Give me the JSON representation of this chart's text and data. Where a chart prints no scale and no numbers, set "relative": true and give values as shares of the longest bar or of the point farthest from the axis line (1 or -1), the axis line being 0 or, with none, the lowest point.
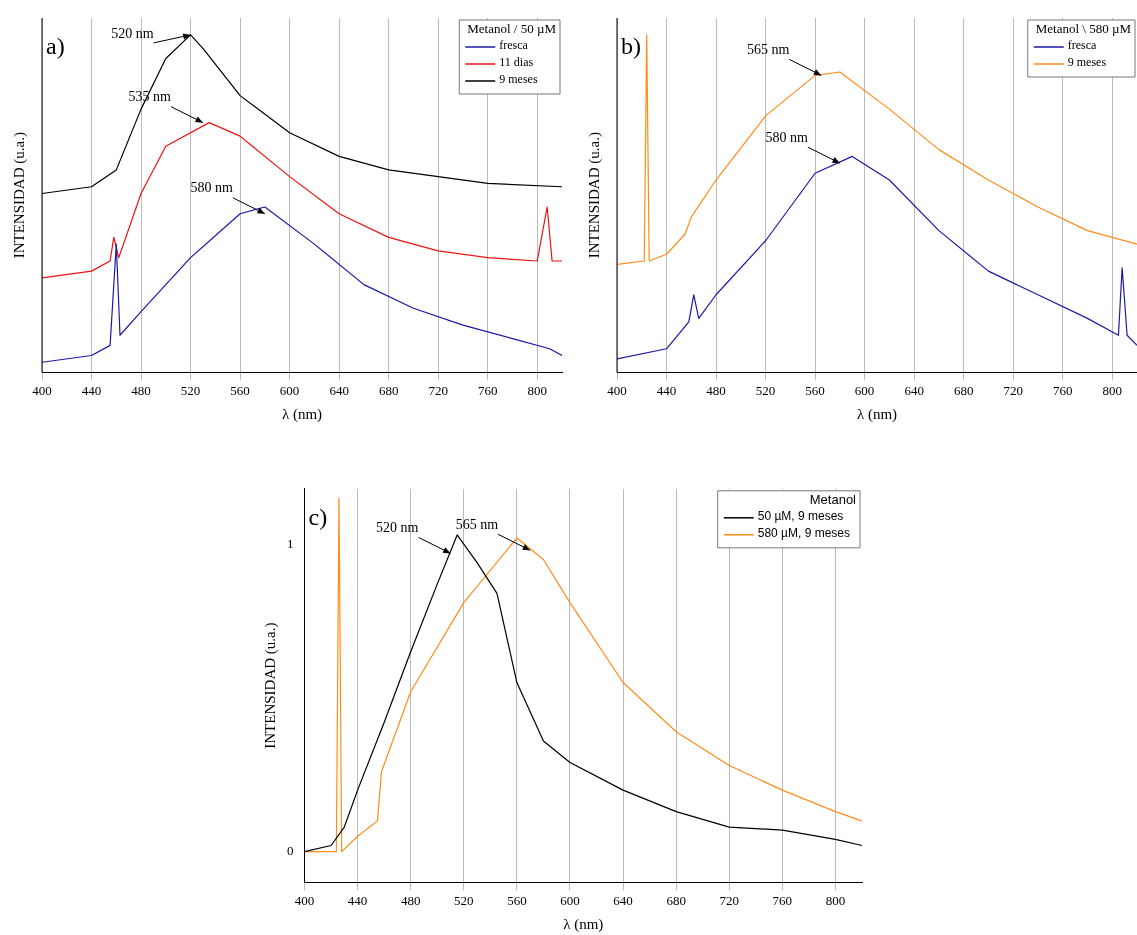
{
  "chart_data": [
    {
      "type": "line",
      "relative": true,
      "xlabel": "λ (nm)",
      "ylabel": "INTENSIDAD (u.a.)",
      "legend_title": "Metanol / 50 µM",
      "legend": "top right",
      "grid": "x",
      "xlim": [
        400,
        820
      ],
      "xticks": [
        400,
        440,
        480,
        520,
        560,
        600,
        640,
        680,
        720,
        760,
        800
      ],
      "series": [
        {
          "name": "fresca",
          "color": "#1a1aa6",
          "x": [
            400,
            440,
            455,
            460,
            463,
            480,
            520,
            560,
            580,
            620,
            660,
            700,
            740,
            780,
            810,
            820
          ],
          "values": [
            0.03,
            0.05,
            0.08,
            0.38,
            0.11,
            0.18,
            0.34,
            0.47,
            0.49,
            0.38,
            0.26,
            0.19,
            0.14,
            0.1,
            0.07,
            0.05
          ]
        },
        {
          "name": "11 dias",
          "color": "#ee1111",
          "x": [
            400,
            440,
            455,
            458,
            462,
            480,
            500,
            535,
            560,
            600,
            640,
            680,
            720,
            760,
            800,
            808,
            812,
            820
          ],
          "values": [
            0.28,
            0.3,
            0.33,
            0.4,
            0.34,
            0.53,
            0.67,
            0.74,
            0.7,
            0.58,
            0.47,
            0.4,
            0.36,
            0.34,
            0.33,
            0.49,
            0.33,
            0.33
          ]
        },
        {
          "name": "9 meses",
          "color": "#000000",
          "x": [
            400,
            440,
            460,
            480,
            500,
            520,
            530,
            560,
            600,
            640,
            680,
            720,
            760,
            820
          ],
          "values": [
            0.53,
            0.55,
            0.6,
            0.78,
            0.93,
            1,
            0.96,
            0.82,
            0.71,
            0.64,
            0.6,
            0.58,
            0.56,
            0.55
          ]
        }
      ],
      "annotations": [
        "a)",
        {
          "text": "520 nm",
          "x": 520,
          "y": 1
        },
        {
          "text": "535 nm",
          "x": 530,
          "y": 0.74
        },
        {
          "text": "580 nm",
          "x": 580,
          "y": 0.47
        }
      ]
    },
    {
      "type": "line",
      "relative": true,
      "xlabel": "λ (nm)",
      "ylabel": "INTENSIDAD (u.a.)",
      "legend_title": "Metanol \\ 580 µM",
      "legend": "top right",
      "grid": "x",
      "xlim": [
        400,
        820
      ],
      "xticks": [
        400,
        440,
        480,
        520,
        560,
        600,
        640,
        680,
        720,
        760,
        800
      ],
      "series": [
        {
          "name": "fresca",
          "color": "#1a1aa6",
          "x": [
            400,
            440,
            458,
            462,
            466,
            480,
            520,
            560,
            590,
            620,
            660,
            700,
            740,
            780,
            805,
            808,
            812,
            820
          ],
          "values": [
            0.04,
            0.07,
            0.15,
            0.23,
            0.16,
            0.23,
            0.39,
            0.59,
            0.64,
            0.57,
            0.42,
            0.3,
            0.23,
            0.16,
            0.11,
            0.31,
            0.11,
            0.08
          ]
        },
        {
          "name": "9 meses",
          "color": "#ff8c1a",
          "x": [
            400,
            422,
            424,
            426,
            440,
            455,
            460,
            480,
            520,
            560,
            580,
            620,
            660,
            700,
            740,
            780,
            820
          ],
          "values": [
            0.32,
            0.33,
            1,
            0.33,
            0.35,
            0.41,
            0.46,
            0.57,
            0.76,
            0.88,
            0.89,
            0.78,
            0.66,
            0.57,
            0.49,
            0.42,
            0.38
          ]
        }
      ],
      "annotations": [
        "b)",
        {
          "text": "565 nm",
          "x": 565,
          "y": 0.88
        },
        {
          "text": "580 nm",
          "x": 580,
          "y": 0.62
        }
      ]
    },
    {
      "type": "line",
      "xlabel": "λ (nm)",
      "ylabel": "INTENSIDAD (u.a.)",
      "legend_title": "Metanol",
      "legend": "top right",
      "grid": "x",
      "xlim": [
        400,
        820
      ],
      "xticks": [
        400,
        440,
        480,
        520,
        560,
        600,
        640,
        680,
        720,
        760,
        800
      ],
      "ylim": [
        -0.1,
        1.18
      ],
      "yticks": [
        0,
        1
      ],
      "series": [
        {
          "name": "50 µM, 9 meses",
          "color": "#000000",
          "x": [
            400,
            420,
            430,
            440,
            460,
            480,
            500,
            515,
            530,
            545,
            560,
            580,
            600,
            640,
            680,
            720,
            760,
            800,
            820
          ],
          "values": [
            0,
            0.02,
            0.08,
            0.2,
            0.42,
            0.65,
            0.87,
            1.03,
            0.94,
            0.84,
            0.55,
            0.36,
            0.29,
            0.2,
            0.13,
            0.08,
            0.07,
            0.04,
            0.02
          ]
        },
        {
          "name": "580 µM, 9 meses",
          "color": "#ff8c1a",
          "x": [
            400,
            424,
            426,
            428,
            440,
            455,
            458,
            480,
            520,
            560,
            580,
            600,
            640,
            680,
            720,
            760,
            800,
            820
          ],
          "values": [
            0,
            0,
            1.15,
            0,
            0.05,
            0.1,
            0.26,
            0.52,
            0.81,
            1.02,
            0.95,
            0.81,
            0.55,
            0.39,
            0.28,
            0.2,
            0.13,
            0.1
          ]
        }
      ],
      "annotations": [
        "c)",
        {
          "text": "520 nm",
          "x": 510,
          "y": 0.97
        },
        {
          "text": "565 nm",
          "x": 570,
          "y": 0.98
        }
      ]
    }
  ]
}
